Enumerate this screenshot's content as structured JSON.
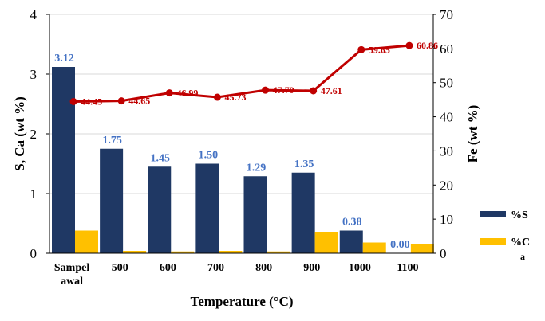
{
  "chart_data": {
    "type": "bar",
    "categories": [
      [
        "Sampel",
        "awal"
      ],
      [
        "500"
      ],
      [
        "600"
      ],
      [
        "700"
      ],
      [
        "800"
      ],
      [
        "900"
      ],
      [
        "1000"
      ],
      [
        "1100"
      ]
    ],
    "xlabel": "Temperature (°C)",
    "ylabel": "S, Ca (wt %)",
    "y2label": "Fe (wt %)",
    "ylim": [
      0,
      4
    ],
    "y2lim": [
      0,
      70
    ],
    "yticks": [
      "0",
      "1",
      "2",
      "3",
      "4"
    ],
    "y2ticks": [
      "0",
      "10",
      "20",
      "30",
      "40",
      "50",
      "60",
      "70"
    ],
    "grid": true,
    "series": [
      {
        "name": "%S",
        "axis": "left",
        "kind": "bar",
        "color": "#1F3864",
        "values": [
          3.12,
          1.75,
          1.45,
          1.5,
          1.29,
          1.35,
          0.38,
          0.0
        ],
        "labels": [
          "3.12",
          "1.75",
          "1.45",
          "1.50",
          "1.29",
          "1.35",
          "0.38",
          "0.00"
        ]
      },
      {
        "name_lines": [
          "%C",
          "a"
        ],
        "axis": "left",
        "kind": "bar",
        "color": "#FFC000",
        "values": [
          0.38,
          0.04,
          0.03,
          0.04,
          0.03,
          0.36,
          0.18,
          0.16
        ]
      },
      {
        "axis": "right",
        "kind": "line",
        "color": "#C00000",
        "values": [
          44.45,
          44.65,
          46.99,
          45.73,
          47.79,
          47.61,
          59.65,
          60.86
        ],
        "labels": [
          "44.45",
          "44.65",
          "46.99",
          "45.73",
          "47.79",
          "47.61",
          "59.65",
          "60.86"
        ]
      }
    ],
    "legend_position": "bottom-right"
  }
}
